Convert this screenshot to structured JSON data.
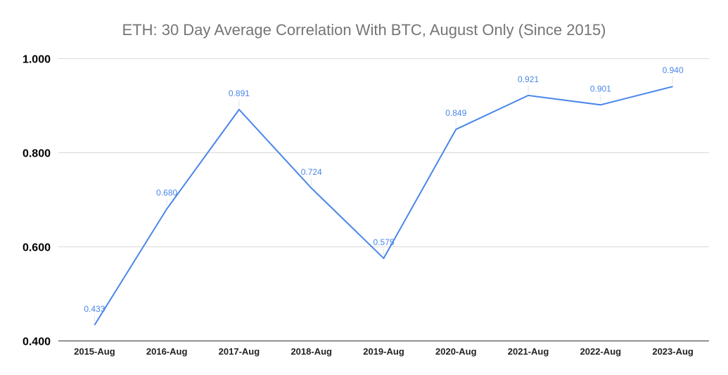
{
  "chart_data": {
    "type": "line",
    "title": "ETH: 30 Day Average Correlation With BTC, August Only (Since 2015)",
    "xlabel": "",
    "ylabel": "",
    "categories": [
      "2015-Aug",
      "2016-Aug",
      "2017-Aug",
      "2018-Aug",
      "2019-Aug",
      "2020-Aug",
      "2021-Aug",
      "2022-Aug",
      "2023-Aug"
    ],
    "series": [
      {
        "values": [
          0.433,
          0.68,
          0.891,
          0.724,
          0.575,
          0.849,
          0.921,
          0.901,
          0.94
        ],
        "data_labels": [
          "0.433",
          "0.680",
          "0.891",
          "0.724",
          "0.575",
          "0.849",
          "0.921",
          "0.901",
          "0.940"
        ],
        "color": "#4a86e8"
      }
    ],
    "ylim": [
      0.4,
      1.0
    ],
    "yticks": [
      0.4,
      0.6,
      0.8,
      1.0
    ],
    "ytick_labels": [
      "0.400",
      "0.600",
      "0.800",
      "1.000"
    ],
    "grid": true,
    "legend": "none",
    "colors": {
      "title": "#757575",
      "gridline": "#d9d9d9",
      "line": "#4a86e8"
    }
  }
}
